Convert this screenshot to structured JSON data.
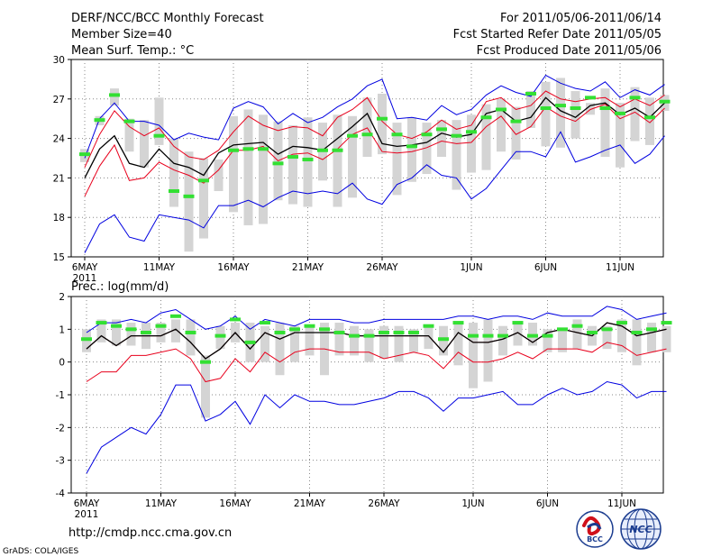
{
  "header": {
    "title": "DERF/NCC/BCC Monthly Forecast",
    "member_size": "Member Size=40",
    "variable": "Mean Surf. Temp.: °C",
    "period": "For 2011/05/06-2011/06/14",
    "fcst_started": "Fcst Started Refer Date 2011/05/05",
    "fcst_produced": "Fcst Produced Date 2011/05/06"
  },
  "footer": {
    "url": "http://cmdp.ncc.cma.gov.cn",
    "credit": "GrADS: COLA/IGES",
    "logo_bcc": "BCC",
    "logo_ncc": "NCC"
  },
  "colors": {
    "ensemble_mean": "#000000",
    "inner_bounds": "#e8001c",
    "outer_bounds": "#0000e0",
    "box": "#d4d4d4",
    "median_marker": "#33e033",
    "grid": "#888888"
  },
  "chart_data": [
    {
      "type": "line",
      "panel": "temperature",
      "title": "Mean Surf. Temp.: °C",
      "x_axis": {
        "days": 40,
        "start": "2011-05-06",
        "tick_labels": [
          "6MAY",
          "11MAY",
          "16MAY",
          "21MAY",
          "26MAY",
          "1JUN",
          "6JUN",
          "11JUN"
        ],
        "tick_day_index": [
          0,
          5,
          10,
          15,
          20,
          26,
          31,
          36
        ],
        "year_label": "2011"
      },
      "ylim": [
        15,
        30
      ],
      "y_ticks": [
        15,
        18,
        21,
        24,
        27,
        30
      ],
      "series": [
        {
          "name": "max",
          "color": "#0000e0",
          "values": [
            22.5,
            25.5,
            26.7,
            25.3,
            25.3,
            25.0,
            23.9,
            24.4,
            24.1,
            23.9,
            26.3,
            26.8,
            26.4,
            25.1,
            25.9,
            25.2,
            25.6,
            26.4,
            27.0,
            28.0,
            28.5,
            25.5,
            25.6,
            25.4,
            26.5,
            25.8,
            26.2,
            27.3,
            28.0,
            27.5,
            27.2,
            28.8,
            28.2,
            27.8,
            27.6,
            28.3,
            27.1,
            27.7,
            27.3,
            28.1
          ]
        },
        {
          "name": "upper",
          "color": "#e8001c",
          "values": [
            21.8,
            24.3,
            26.1,
            24.9,
            24.2,
            24.8,
            23.4,
            22.6,
            22.4,
            23.1,
            24.5,
            25.7,
            25.0,
            24.6,
            24.9,
            24.8,
            24.2,
            25.6,
            26.2,
            27.1,
            25.3,
            24.3,
            24.0,
            24.5,
            25.4,
            24.7,
            25.0,
            26.8,
            27.1,
            26.2,
            26.5,
            27.6,
            27.0,
            26.8,
            27.0,
            27.1,
            26.4,
            27.0,
            26.5,
            27.3
          ]
        },
        {
          "name": "mean",
          "color": "#000000",
          "values": [
            21.0,
            23.2,
            24.2,
            22.1,
            21.8,
            23.2,
            22.1,
            21.8,
            21.2,
            22.9,
            23.5,
            23.6,
            23.7,
            22.8,
            23.4,
            23.3,
            23.1,
            24.0,
            24.9,
            25.9,
            23.6,
            23.4,
            23.5,
            23.7,
            24.4,
            24.1,
            24.3,
            25.9,
            26.2,
            25.3,
            25.6,
            27.1,
            26.1,
            25.6,
            26.5,
            26.7,
            25.8,
            26.3,
            25.6,
            26.7
          ]
        },
        {
          "name": "lower",
          "color": "#e8001c",
          "values": [
            19.6,
            21.9,
            23.5,
            20.8,
            21.0,
            22.2,
            21.6,
            21.2,
            20.6,
            21.6,
            23.1,
            23.1,
            23.4,
            22.3,
            22.8,
            22.9,
            22.4,
            23.2,
            24.3,
            24.8,
            23.0,
            22.9,
            23.0,
            23.3,
            23.8,
            23.6,
            23.7,
            24.9,
            25.7,
            24.3,
            24.9,
            26.4,
            25.7,
            25.3,
            26.2,
            26.6,
            25.5,
            26.0,
            25.2,
            26.3
          ]
        },
        {
          "name": "min",
          "color": "#0000e0",
          "values": [
            15.3,
            17.5,
            18.2,
            16.5,
            16.2,
            18.2,
            18.0,
            17.8,
            17.2,
            18.9,
            18.9,
            19.3,
            18.8,
            19.5,
            20.0,
            19.8,
            20.0,
            19.8,
            20.6,
            19.4,
            19.0,
            20.5,
            21.0,
            22.0,
            21.2,
            21.0,
            19.4,
            20.2,
            21.6,
            23.0,
            23.0,
            22.6,
            24.5,
            22.2,
            22.6,
            23.1,
            23.5,
            22.1,
            22.8,
            24.2
          ]
        },
        {
          "name": "median",
          "color": "#33e033",
          "values": [
            22.8,
            25.4,
            27.3,
            25.3,
            null,
            24.2,
            20.0,
            19.6,
            20.8,
            null,
            23.1,
            23.2,
            23.2,
            22.1,
            22.6,
            22.4,
            23.1,
            23.1,
            24.2,
            24.3,
            25.5,
            24.3,
            23.4,
            24.3,
            24.7,
            24.2,
            24.5,
            25.6,
            26.2,
            25.3,
            27.4,
            26.3,
            26.5,
            26.3,
            27.1,
            26.3,
            25.9,
            27.1,
            25.6,
            26.8
          ]
        }
      ],
      "boxes": {
        "low": [
          22.2,
          25.0,
          26.5,
          23.0,
          21.8,
          23.5,
          18.8,
          15.4,
          16.4,
          20.0,
          18.4,
          17.4,
          17.5,
          19.3,
          19.0,
          18.8,
          20.8,
          18.8,
          19.5,
          22.6,
          22.8,
          19.7,
          20.7,
          21.3,
          22.6,
          20.1,
          21.4,
          21.6,
          23.0,
          22.4,
          24.8,
          23.4,
          23.3,
          24.0,
          25.8,
          22.6,
          21.8,
          23.8,
          23.5,
          26.1
        ],
        "high": [
          23.2,
          25.7,
          27.8,
          25.5,
          25.4,
          27.1,
          24.0,
          23.0,
          22.5,
          22.4,
          25.7,
          26.2,
          25.8,
          25.3,
          25.0,
          25.6,
          25.2,
          25.8,
          25.7,
          27.1,
          27.4,
          25.2,
          25.6,
          25.2,
          25.4,
          25.4,
          25.8,
          26.6,
          27.0,
          26.4,
          27.6,
          28.3,
          28.6,
          27.6,
          26.7,
          27.8,
          26.7,
          27.9,
          27.1,
          27.3
        ]
      }
    },
    {
      "type": "line",
      "panel": "precipitation",
      "title": "Prec.: log(mm/d)",
      "x_axis": {
        "days": 40,
        "start": "2011-05-06",
        "tick_labels": [
          "6MAY",
          "11MAY",
          "16MAY",
          "21MAY",
          "26MAY",
          "1JUN",
          "6JUN",
          "11JUN"
        ],
        "tick_day_index": [
          0,
          5,
          10,
          15,
          20,
          26,
          31,
          36
        ],
        "year_label": "2011"
      },
      "ylim": [
        -4,
        2
      ],
      "y_ticks": [
        -4,
        -3,
        -2,
        -1,
        0,
        1,
        2
      ],
      "series": [
        {
          "name": "max",
          "color": "#0000e0",
          "values": [
            0.9,
            1.2,
            1.2,
            1.3,
            1.2,
            1.5,
            1.6,
            1.3,
            1.0,
            1.1,
            1.4,
            1.0,
            1.3,
            1.2,
            1.1,
            1.3,
            1.3,
            1.3,
            1.2,
            1.2,
            1.3,
            1.3,
            1.3,
            1.3,
            1.3,
            1.4,
            1.4,
            1.3,
            1.4,
            1.4,
            1.3,
            1.5,
            1.4,
            1.4,
            1.4,
            1.7,
            1.6,
            1.3,
            1.4,
            1.5
          ]
        },
        {
          "name": "mean",
          "color": "#000000",
          "values": [
            0.4,
            0.8,
            0.5,
            0.8,
            0.8,
            0.8,
            1.0,
            0.6,
            0.1,
            0.4,
            0.9,
            0.4,
            0.9,
            0.7,
            0.9,
            0.9,
            0.9,
            0.9,
            0.8,
            0.8,
            0.8,
            0.8,
            0.8,
            0.8,
            0.3,
            0.9,
            0.6,
            0.6,
            0.7,
            0.9,
            0.6,
            0.9,
            1.0,
            0.9,
            0.8,
            1.2,
            1.1,
            0.8,
            0.9,
            1.0
          ]
        },
        {
          "name": "upper",
          "color": "#e8001c",
          "values": [
            0.4,
            0.8,
            0.5,
            0.8,
            0.8,
            0.8,
            1.0,
            0.6,
            0.1,
            0.4,
            0.9,
            0.4,
            0.9,
            0.7,
            0.9,
            0.9,
            0.9,
            0.9,
            0.8,
            0.8,
            0.8,
            0.8,
            0.8,
            0.8,
            0.3,
            0.9,
            0.6,
            0.6,
            0.7,
            0.9,
            0.6,
            0.9,
            1.0,
            0.9,
            0.8,
            1.2,
            1.1,
            0.8,
            0.9,
            1.0
          ]
        },
        {
          "name": "lower",
          "color": "#e8001c",
          "values": [
            -0.6,
            -0.3,
            -0.3,
            0.2,
            0.2,
            0.3,
            0.4,
            0.1,
            -0.6,
            -0.5,
            0.1,
            -0.3,
            0.3,
            0.0,
            0.3,
            0.4,
            0.4,
            0.3,
            0.3,
            0.3,
            0.1,
            0.2,
            0.3,
            0.2,
            -0.2,
            0.3,
            0.0,
            0.0,
            0.1,
            0.3,
            0.1,
            0.4,
            0.4,
            0.4,
            0.3,
            0.6,
            0.5,
            0.2,
            0.3,
            0.4
          ]
        },
        {
          "name": "min",
          "color": "#0000e0",
          "values": [
            -3.4,
            -2.6,
            -2.3,
            -2.0,
            -2.2,
            -1.6,
            -0.7,
            -0.7,
            -1.8,
            -1.6,
            -1.2,
            -1.9,
            -1.0,
            -1.4,
            -1.0,
            -1.2,
            -1.2,
            -1.3,
            -1.3,
            -1.2,
            -1.1,
            -0.9,
            -0.9,
            -1.1,
            -1.5,
            -1.1,
            -1.1,
            -1.0,
            -0.9,
            -1.3,
            -1.3,
            -1.0,
            -0.8,
            -1.0,
            -0.9,
            -0.6,
            -0.7,
            -1.1,
            -0.9,
            -0.9
          ]
        },
        {
          "name": "median",
          "color": "#33e033",
          "values": [
            0.7,
            1.2,
            1.1,
            1.0,
            0.9,
            1.1,
            1.4,
            0.9,
            0.0,
            0.8,
            1.3,
            0.6,
            1.2,
            0.9,
            1.0,
            1.1,
            1.0,
            0.9,
            0.8,
            0.8,
            0.9,
            0.9,
            0.9,
            1.1,
            0.7,
            1.2,
            0.8,
            0.8,
            0.8,
            1.2,
            0.8,
            0.8,
            1.0,
            1.1,
            0.9,
            1.0,
            1.2,
            0.9,
            1.0,
            1.2
          ]
        }
      ],
      "boxes": {
        "low": [
          0.3,
          0.6,
          0.5,
          0.5,
          0.4,
          0.6,
          0.6,
          0.2,
          -1.7,
          0.4,
          0.6,
          0.0,
          0.0,
          -0.4,
          0.0,
          0.2,
          -0.4,
          0.2,
          0.2,
          0.0,
          0.1,
          0.0,
          0.3,
          0.4,
          0.2,
          -0.1,
          -0.8,
          -0.6,
          0.2,
          0.5,
          0.5,
          0.3,
          0.3,
          0.4,
          0.5,
          0.4,
          0.3,
          -0.1,
          0.3,
          0.3
        ],
        "high": [
          1.0,
          1.3,
          1.3,
          1.2,
          1.2,
          1.2,
          1.3,
          1.3,
          0.2,
          1.1,
          1.2,
          1.2,
          1.1,
          1.2,
          1.1,
          1.1,
          1.2,
          1.2,
          1.1,
          1.0,
          1.1,
          1.1,
          1.0,
          1.1,
          1.1,
          1.2,
          1.2,
          1.3,
          1.1,
          1.2,
          1.2,
          1.0,
          1.0,
          1.3,
          1.1,
          1.1,
          1.3,
          1.3,
          1.2,
          1.1
        ]
      }
    }
  ]
}
